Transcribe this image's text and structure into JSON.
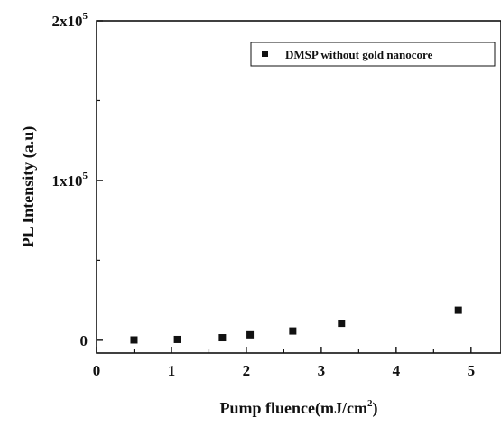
{
  "chart_data": {
    "type": "scatter",
    "xlabel": "Pump fluence(mJ/cm",
    "xlabel_sup": "2",
    "xlabel_end": ")",
    "ylabel": "PL Intensity (a.u)",
    "xlim": [
      0,
      5.4
    ],
    "ylim": [
      -8000,
      200000
    ],
    "x_ticks": [
      0,
      1,
      2,
      3,
      4,
      5
    ],
    "x_tick_labels": [
      "0",
      "1",
      "2",
      "3",
      "4",
      "5"
    ],
    "y_ticks": [
      0,
      100000,
      200000
    ],
    "y_tick_labels": [
      {
        "base": "0",
        "exp": ""
      },
      {
        "base": "1x10",
        "exp": "5"
      },
      {
        "base": "2x10",
        "exp": "5"
      }
    ],
    "grid": false,
    "legend": {
      "position": "top-right",
      "entries": [
        "DMSP  without gold nanocore"
      ]
    },
    "series": [
      {
        "name": "DMSP  without gold nanocore",
        "marker": "square",
        "color": "#111111",
        "x": [
          0.5,
          1.08,
          1.68,
          2.05,
          2.62,
          3.27,
          4.83
        ],
        "y": [
          200,
          500,
          1600,
          3400,
          5800,
          10600,
          18800
        ]
      }
    ]
  }
}
